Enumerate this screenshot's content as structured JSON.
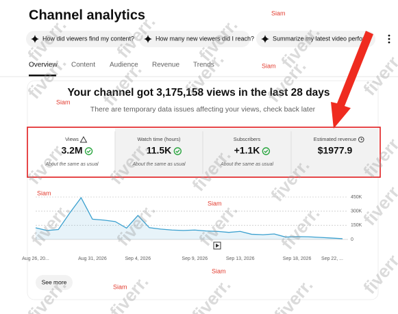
{
  "header": {
    "title": "Channel analytics"
  },
  "chips": [
    "How did viewers find my content?",
    "How many new viewers did I reach?",
    "Summarize my latest video perform"
  ],
  "tabs": [
    "Overview",
    "Content",
    "Audience",
    "Revenue",
    "Trends"
  ],
  "summary": {
    "headline": "Your channel got 3,175,158 views in the last 28 days",
    "notice": "There are temporary data issues affecting your views, check back later"
  },
  "metrics": [
    {
      "label": "Views",
      "value": "3.2M",
      "note": "About the same as usual"
    },
    {
      "label": "Watch time (hours)",
      "value": "11.5K",
      "note": "About the same as usual"
    },
    {
      "label": "Subscribers",
      "value": "+1.1K",
      "note": "About the same as usual"
    },
    {
      "label": "Estimated revenue",
      "value": "$1977.9"
    }
  ],
  "chart_data": {
    "type": "line",
    "categories": [
      "Aug 26, 20...",
      null,
      null,
      null,
      null,
      "Aug 31, 2026",
      null,
      null,
      null,
      "Sep 4, 2026",
      null,
      null,
      null,
      null,
      "Sep 9, 2026",
      null,
      null,
      null,
      "Sep 13, 2026",
      null,
      null,
      null,
      null,
      "Sep 18, 2026",
      null,
      null,
      null,
      "Sep 22, ..."
    ],
    "series": [
      {
        "color": "#3aa0cf",
        "values": [
          123000,
          95000,
          105000,
          280000,
          443000,
          215000,
          205000,
          190000,
          120000,
          254000,
          125000,
          110000,
          100000,
          95000,
          100000,
          90000,
          85000,
          75000,
          85000,
          55000,
          50000,
          58000,
          25000,
          30000,
          28000,
          22000,
          15000,
          8000
        ]
      }
    ],
    "ylim": [
      0,
      450000
    ],
    "yticks": [
      0,
      {
        "value": 150000,
        "label": "150K"
      },
      {
        "value": 300000,
        "label": "300K"
      },
      {
        "value": 450000,
        "label": "450K"
      }
    ],
    "grid": true
  },
  "see_more": "See more",
  "watermarks": {
    "signature": "Siam",
    "brand": "fiverr."
  }
}
